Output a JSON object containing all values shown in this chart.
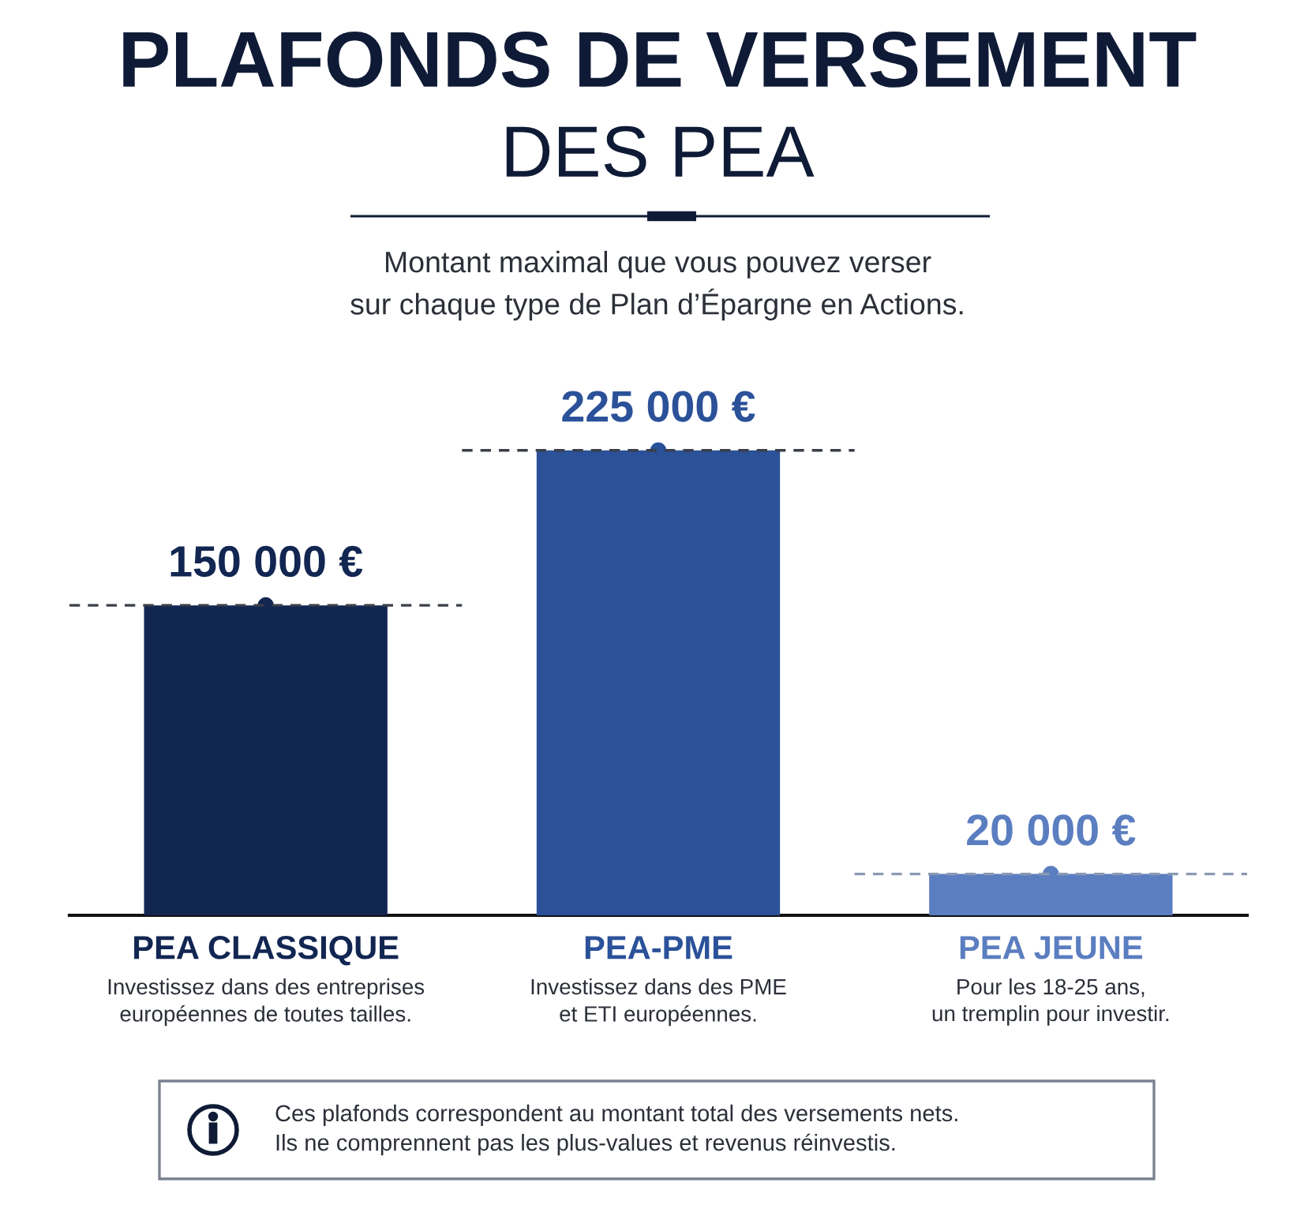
{
  "chart_data": {
    "type": "bar",
    "title": "PLAFONDS DE VERSEMENT\nDES PEA",
    "subtitle": "Montant maximal que vous pouvez verser\nsur chaque type de Plan d’Épargne en Actions.",
    "categories": [
      "PEA CLASSIQUE",
      "PEA-PME",
      "PEA JEUNE"
    ],
    "values": [
      150000,
      225000,
      20000
    ],
    "colors": [
      "#122652",
      "#2b5199",
      "#5b7ec0"
    ],
    "value_labels": [
      "150 000 €",
      "225 000 €",
      "20 000 €"
    ],
    "ref_lines": [
      {
        "axis": "y",
        "value": 150000,
        "color": "#3a3f4a",
        "line_style": "dashed"
      },
      {
        "axis": "y",
        "value": 225000,
        "color": "#3a3f4a",
        "line_style": "dashed"
      },
      {
        "axis": "y",
        "value": 20000,
        "color": "#8c9ab3",
        "line_style": "dashed"
      }
    ],
    "annotations": [
      "Investissez dans des entreprises\neuropéennes de toutes tailles.",
      "Investissez dans des PME\net ETI européennes.",
      "Pour les 18-25 ans,\nun tremplin pour investir.",
      "Ces plafonds correspondent au montant total des versements nets.\nIls ne comprennent pas les plus-values et revenus réinvestis."
    ],
    "tick_labels": "x"
  }
}
